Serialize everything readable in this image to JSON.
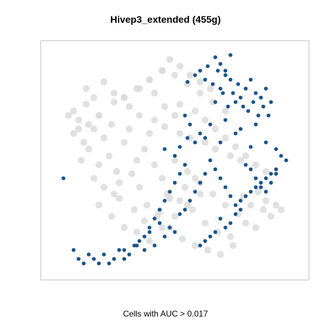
{
  "chart_data": {
    "type": "scatter",
    "title": "Hivep3_extended (455g)",
    "xlabel": "Cells with AUC > 0.017",
    "ylabel": "",
    "axes_visible": false,
    "grid": false,
    "legend": "none",
    "colors": {
      "background_cells": "#d9d9d9",
      "selected_cells": "#0e4a86",
      "selected_cells_light": "#4a74a8",
      "frame": "#bfbfbf"
    },
    "series": [
      {
        "role": "background",
        "x": [
          0.1,
          0.12,
          0.15,
          0.1,
          0.08,
          0.14,
          0.18,
          0.2,
          0.16,
          0.13,
          0.22,
          0.25,
          0.2,
          0.18,
          0.24,
          0.27,
          0.3,
          0.32,
          0.28,
          0.26,
          0.35,
          0.33,
          0.38,
          0.36,
          0.4,
          0.42,
          0.39,
          0.45,
          0.43,
          0.47,
          0.5,
          0.48,
          0.52,
          0.55,
          0.53,
          0.57,
          0.6,
          0.58,
          0.62,
          0.65,
          0.63,
          0.67,
          0.7,
          0.68,
          0.72,
          0.75,
          0.73,
          0.78,
          0.8,
          0.77,
          0.82,
          0.85,
          0.83,
          0.88,
          0.86,
          0.9,
          0.92,
          0.2,
          0.25,
          0.3,
          0.35,
          0.4,
          0.45,
          0.5,
          0.55,
          0.6,
          0.22,
          0.28,
          0.34,
          0.38,
          0.44,
          0.48,
          0.54,
          0.58,
          0.3,
          0.35,
          0.4,
          0.45,
          0.5,
          0.55,
          0.6,
          0.65,
          0.7,
          0.15,
          0.18,
          0.22,
          0.26,
          0.32,
          0.36,
          0.42,
          0.46,
          0.52,
          0.56,
          0.62,
          0.66,
          0.72,
          0.76,
          0.82,
          0.86,
          0.48,
          0.52,
          0.56,
          0.6,
          0.64,
          0.45,
          0.4,
          0.36,
          0.3,
          0.26,
          0.2,
          0.16,
          0.12,
          0.58,
          0.62,
          0.66,
          0.7,
          0.74,
          0.78,
          0.52,
          0.5,
          0.46,
          0.42
        ],
        "y": [
          0.72,
          0.68,
          0.75,
          0.62,
          0.7,
          0.58,
          0.64,
          0.7,
          0.55,
          0.5,
          0.6,
          0.66,
          0.48,
          0.42,
          0.52,
          0.45,
          0.58,
          0.64,
          0.4,
          0.35,
          0.5,
          0.44,
          0.55,
          0.38,
          0.62,
          0.48,
          0.3,
          0.42,
          0.25,
          0.35,
          0.5,
          0.2,
          0.32,
          0.45,
          0.15,
          0.28,
          0.4,
          0.12,
          0.22,
          0.35,
          0.1,
          0.18,
          0.3,
          0.08,
          0.16,
          0.26,
          0.12,
          0.22,
          0.3,
          0.34,
          0.2,
          0.28,
          0.36,
          0.25,
          0.32,
          0.3,
          0.28,
          0.3,
          0.25,
          0.2,
          0.18,
          0.14,
          0.2,
          0.25,
          0.3,
          0.35,
          0.38,
          0.33,
          0.28,
          0.23,
          0.27,
          0.33,
          0.38,
          0.42,
          0.78,
          0.82,
          0.86,
          0.9,
          0.88,
          0.84,
          0.8,
          0.76,
          0.72,
          0.82,
          0.78,
          0.85,
          0.8,
          0.74,
          0.7,
          0.68,
          0.65,
          0.62,
          0.6,
          0.58,
          0.55,
          0.52,
          0.5,
          0.48,
          0.45,
          0.95,
          0.92,
          0.88,
          0.85,
          0.82,
          0.9,
          0.86,
          0.82,
          0.78,
          0.76,
          0.7,
          0.66,
          0.64,
          0.72,
          0.68,
          0.64,
          0.6,
          0.56,
          0.52,
          0.75,
          0.7,
          0.74,
          0.8
        ]
      },
      {
        "role": "selected",
        "name": "",
        "x": [
          0.55,
          0.58,
          0.6,
          0.62,
          0.63,
          0.65,
          0.67,
          0.68,
          0.7,
          0.72,
          0.73,
          0.75,
          0.76,
          0.78,
          0.8,
          0.82,
          0.84,
          0.86,
          0.88,
          0.66,
          0.69,
          0.71,
          0.74,
          0.77,
          0.79,
          0.81,
          0.83,
          0.85,
          0.87,
          0.64,
          0.7,
          0.76,
          0.82,
          0.62,
          0.68,
          0.74,
          0.8,
          0.86,
          0.9,
          0.92,
          0.94,
          0.9,
          0.88,
          0.86,
          0.84,
          0.82,
          0.8,
          0.78,
          0.76,
          0.74,
          0.72,
          0.7,
          0.68,
          0.66,
          0.64,
          0.62,
          0.6,
          0.58,
          0.56,
          0.54,
          0.52,
          0.78,
          0.8,
          0.82,
          0.84,
          0.86,
          0.88,
          0.9,
          0.76,
          0.74,
          0.72,
          0.7,
          0.68,
          0.66,
          0.64,
          0.62,
          0.6,
          0.5,
          0.48,
          0.46,
          0.44,
          0.42,
          0.4,
          0.38,
          0.36,
          0.34,
          0.32,
          0.3,
          0.28,
          0.26,
          0.24,
          0.22,
          0.2,
          0.18,
          0.16,
          0.14,
          0.12,
          0.1,
          0.06,
          0.54,
          0.52,
          0.5,
          0.48,
          0.46,
          0.44,
          0.42,
          0.4,
          0.38,
          0.35,
          0.3,
          0.46,
          0.5,
          0.52,
          0.55,
          0.58,
          0.6,
          0.56,
          0.54,
          0.66,
          0.68,
          0.7,
          0.72
        ],
        "y": [
          0.85,
          0.88,
          0.9,
          0.86,
          0.92,
          0.84,
          0.9,
          0.82,
          0.88,
          0.86,
          0.8,
          0.84,
          0.78,
          0.82,
          0.86,
          0.8,
          0.78,
          0.82,
          0.76,
          0.76,
          0.8,
          0.74,
          0.76,
          0.74,
          0.72,
          0.76,
          0.7,
          0.74,
          0.7,
          0.66,
          0.68,
          0.64,
          0.66,
          0.6,
          0.58,
          0.62,
          0.56,
          0.58,
          0.55,
          0.52,
          0.5,
          0.46,
          0.44,
          0.42,
          0.4,
          0.38,
          0.36,
          0.34,
          0.32,
          0.3,
          0.34,
          0.38,
          0.42,
          0.46,
          0.5,
          0.44,
          0.4,
          0.36,
          0.32,
          0.28,
          0.26,
          0.48,
          0.46,
          0.42,
          0.38,
          0.36,
          0.4,
          0.44,
          0.28,
          0.26,
          0.22,
          0.2,
          0.24,
          0.18,
          0.16,
          0.14,
          0.12,
          0.18,
          0.2,
          0.16,
          0.22,
          0.12,
          0.18,
          0.1,
          0.14,
          0.12,
          0.08,
          0.06,
          0.1,
          0.06,
          0.04,
          0.08,
          0.04,
          0.06,
          0.08,
          0.04,
          0.06,
          0.1,
          0.42,
          0.48,
          0.44,
          0.4,
          0.36,
          0.32,
          0.28,
          0.24,
          0.2,
          0.16,
          0.12,
          0.1,
          0.55,
          0.52,
          0.56,
          0.6,
          0.58,
          0.62,
          0.66,
          0.7,
          0.96,
          0.93,
          0.9,
          0.97
        ]
      }
    ],
    "xlim": [
      0,
      1
    ],
    "ylim": [
      0,
      1
    ]
  }
}
